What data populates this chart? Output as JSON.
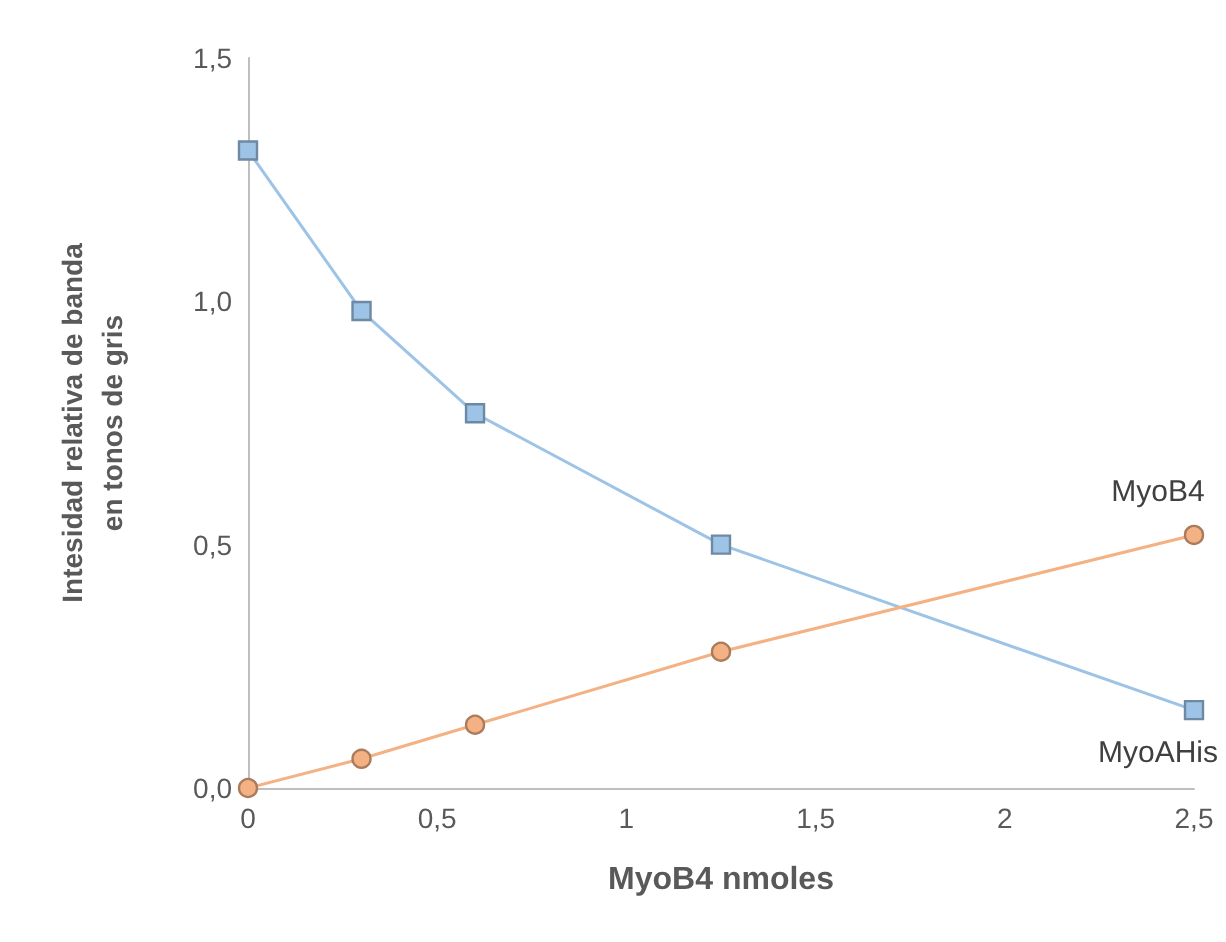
{
  "chart_data": {
    "type": "line",
    "xlabel": "MyoB4 nmoles",
    "ylabel": "Intesidad relativa de banda\nen tonos de gris",
    "x": [
      0,
      0.3,
      0.6,
      1.25,
      2.5
    ],
    "series": [
      {
        "name": "MyoAHis",
        "color": "#9dc3e6",
        "marker": "square",
        "values": [
          1.31,
          0.98,
          0.77,
          0.5,
          0.16
        ]
      },
      {
        "name": "MyoB4",
        "color": "#f4b183",
        "marker": "circle",
        "values": [
          0,
          0.06,
          0.13,
          0.28,
          0.52
        ]
      }
    ],
    "xlim": [
      0,
      2.5
    ],
    "xticks": [
      0,
      {
        "value": 0.5,
        "label": "0,5"
      },
      1,
      {
        "value": 1.5,
        "label": "1,5"
      },
      2,
      {
        "value": 2.5,
        "label": "2,5"
      }
    ],
    "ylim": [
      0,
      1.5
    ],
    "yticks": [
      {
        "value": 0,
        "label": "0,0"
      },
      {
        "value": 0.5,
        "label": "0,5"
      },
      {
        "value": 1,
        "label": "1,0"
      },
      {
        "value": 1.5,
        "label": "1,5"
      }
    ],
    "grid": false,
    "legend": false,
    "line_style": "solid"
  }
}
